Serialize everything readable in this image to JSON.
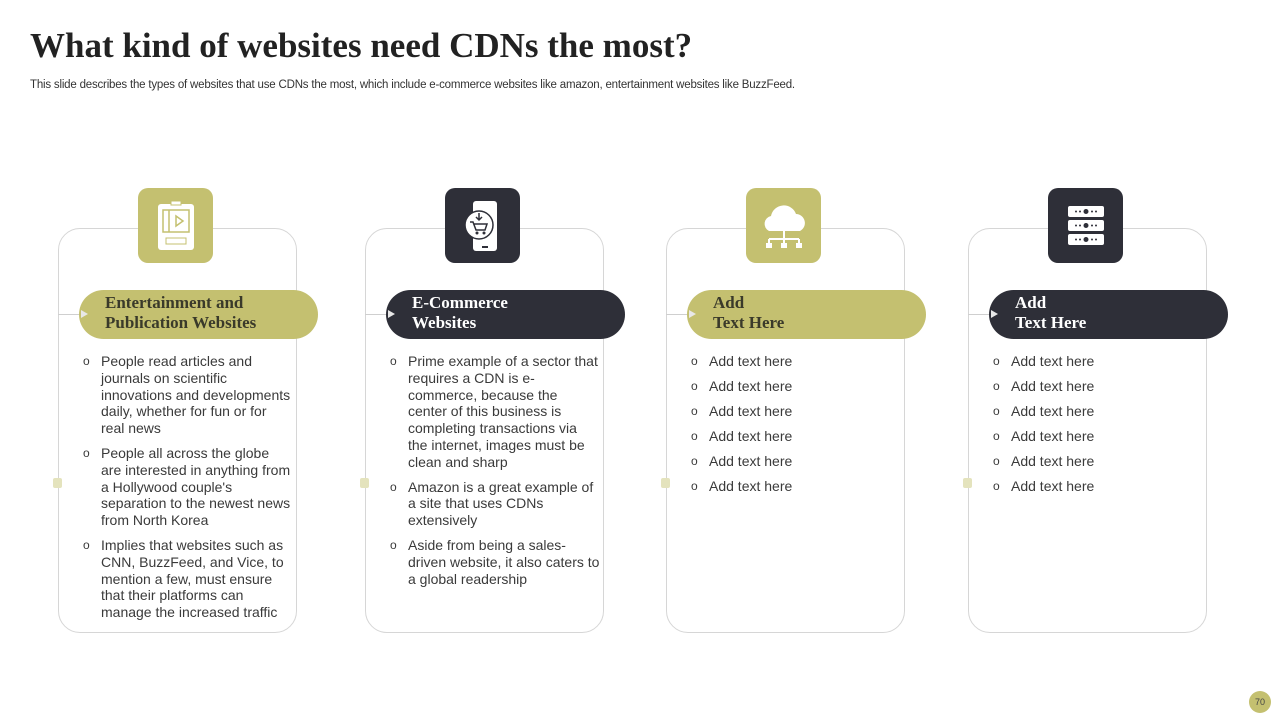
{
  "title": "What kind of websites need CDNs the most?",
  "subtitle": "This slide describes the types of websites that use CDNs the most, which include e-commerce websites like amazon, entertainment websites like BuzzFeed.",
  "colors": {
    "olive": "#c4c070",
    "dark": "#2e2f38"
  },
  "cards": [
    {
      "icon": "tablet-video-icon",
      "heading1": "Entertainment and",
      "heading2": "Publication Websites",
      "bullets": [
        "People read articles and journals on scientific innovations and developments daily, whether for fun or for real news",
        "People all across the globe are interested in anything from a Hollywood couple's separation to the newest news from North Korea",
        "Implies that websites such as CNN, BuzzFeed, and Vice, to mention a few, must ensure that their platforms can manage the increased traffic"
      ]
    },
    {
      "icon": "mobile-shopping-cart-icon",
      "heading1": "E-Commerce",
      "heading2": "Websites",
      "bullets": [
        "Prime example of a sector that requires a CDN is e-commerce, because the center of this business is completing transactions via the internet, images must be clean and sharp",
        "Amazon is a great example of a site that uses CDNs extensively",
        "Aside from being a sales-driven website, it also caters to a global readership"
      ]
    },
    {
      "icon": "cloud-network-icon",
      "heading1": "Add",
      "heading2": "Text Here",
      "bullets": [
        "Add text here",
        "Add text here",
        "Add text here",
        "Add text here",
        "Add text here",
        "Add text here"
      ]
    },
    {
      "icon": "server-icon",
      "heading1": "Add",
      "heading2": "Text Here",
      "bullets": [
        "Add text here",
        "Add text here",
        "Add text here",
        "Add text here",
        "Add text here",
        "Add text here"
      ]
    }
  ],
  "page_number": "70"
}
